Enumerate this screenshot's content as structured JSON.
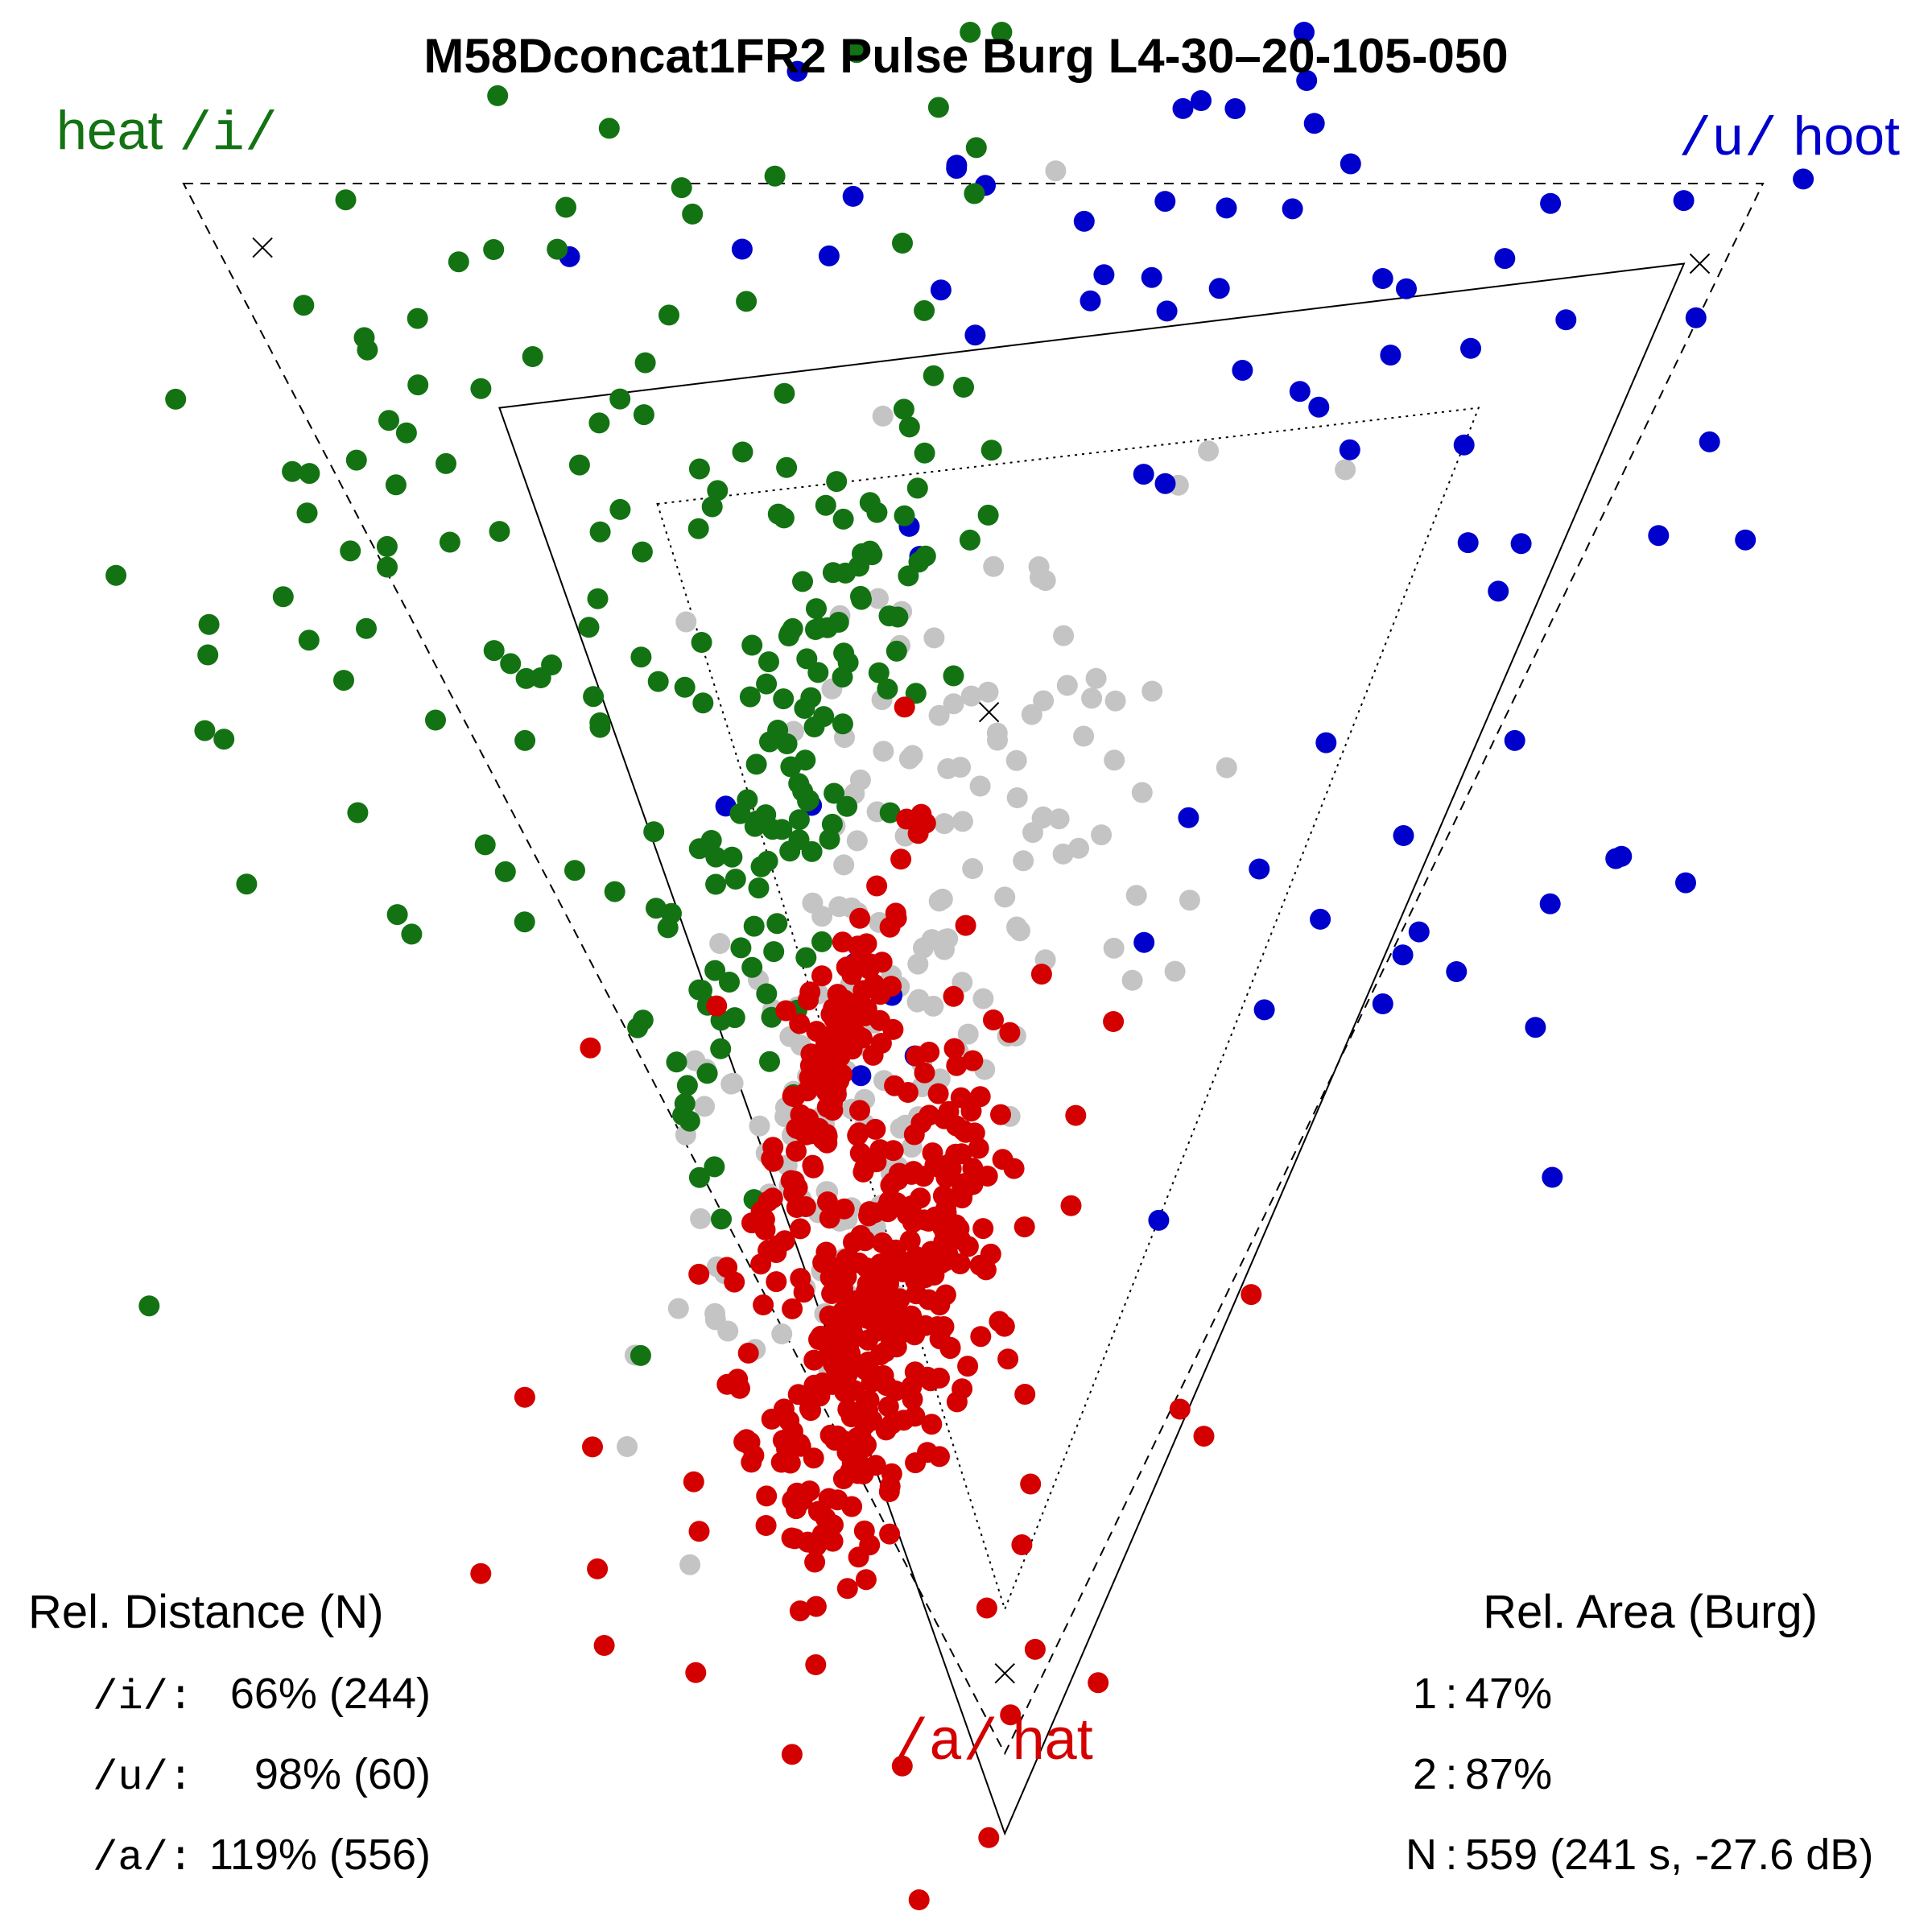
{
  "chart_data": {
    "type": "scatter",
    "title": "M58Dconcat1FR2 Pulse Burg L4-30–20-105-050",
    "colors": {
      "i": "#137313",
      "u": "#0000cc",
      "a": "#d40000",
      "other": "#c4c4c4",
      "line": "#000000"
    },
    "vertex_labels": {
      "i": {
        "symbol": "/i/",
        "word": "heat"
      },
      "u": {
        "symbol": "/u/",
        "word": "hoot"
      },
      "a": {
        "symbol": "/a/",
        "word": "hat"
      }
    },
    "triangles": [
      {
        "name": "reference",
        "style": "dashed",
        "i": [
          0.0,
          0.0
        ],
        "u": [
          1.0,
          0.0
        ],
        "a": [
          0.52,
          0.98
        ]
      },
      {
        "name": "area-1",
        "style": "solid",
        "i": [
          0.2,
          0.14
        ],
        "u": [
          0.95,
          0.05
        ],
        "a": [
          0.52,
          1.03
        ]
      },
      {
        "name": "area-2",
        "style": "dotted",
        "i": [
          0.3,
          0.2
        ],
        "u": [
          0.82,
          0.14
        ],
        "a": [
          0.52,
          0.89
        ]
      }
    ],
    "centroid_markers": [
      [
        0.05,
        0.04
      ],
      [
        0.96,
        0.05
      ],
      [
        0.51,
        0.33
      ],
      [
        0.52,
        0.93
      ]
    ],
    "dot_clusters": [
      {
        "group": "a",
        "count": 330,
        "center": [
          0.44,
          0.7
        ],
        "spread": [
          0.03,
          0.075
        ],
        "tilt": 0.3
      },
      {
        "group": "a",
        "count": 120,
        "center": [
          0.41,
          0.55
        ],
        "spread": [
          0.012,
          0.065
        ],
        "tilt": 0.35
      },
      {
        "group": "a",
        "count": 60,
        "center": [
          0.42,
          0.75
        ],
        "spread": [
          0.1,
          0.14
        ],
        "tilt": 0.0
      },
      {
        "group": "i",
        "count": 130,
        "center": [
          0.39,
          0.37
        ],
        "spread": [
          0.03,
          0.13
        ],
        "tilt": 0.3
      },
      {
        "group": "i",
        "count": 70,
        "center": [
          0.27,
          0.25
        ],
        "spread": [
          0.11,
          0.14
        ],
        "tilt": 0.4
      },
      {
        "group": "i",
        "count": 25,
        "center": [
          0.12,
          0.14
        ],
        "spread": [
          0.06,
          0.09
        ],
        "tilt": 0.6
      },
      {
        "group": "u",
        "count": 30,
        "center": [
          0.56,
          0.02
        ],
        "spread": [
          0.15,
          0.05
        ],
        "tilt": 0.0
      },
      {
        "group": "u",
        "count": 30,
        "center": [
          0.76,
          0.22
        ],
        "spread": [
          0.14,
          0.15
        ],
        "tilt": 0.0
      },
      {
        "group": "u",
        "count": 16,
        "center": [
          0.68,
          0.47
        ],
        "spread": [
          0.14,
          0.09
        ],
        "tilt": 0.0
      },
      {
        "group": "other",
        "count": 140,
        "center": [
          0.44,
          0.52
        ],
        "spread": [
          0.05,
          0.13
        ],
        "tilt": 0.3
      },
      {
        "group": "other",
        "count": 40,
        "center": [
          0.52,
          0.43
        ],
        "spread": [
          0.1,
          0.12
        ],
        "tilt": 0.0
      }
    ],
    "rel_distance": {
      "heading": "Rel. Distance (N)",
      "rows": [
        {
          "symbol": "/i/:",
          "value": "66% (244)"
        },
        {
          "symbol": "/u/:",
          "value": "98% (60)"
        },
        {
          "symbol": "/a/:",
          "value": "119% (556)"
        }
      ]
    },
    "rel_area": {
      "heading": "Rel. Area (Burg)",
      "rows": [
        {
          "key": "1",
          "value": "47%"
        },
        {
          "key": "2",
          "value": "87%"
        },
        {
          "key": "N",
          "value": "559 (241 s, -27.6 dB)"
        }
      ]
    }
  }
}
